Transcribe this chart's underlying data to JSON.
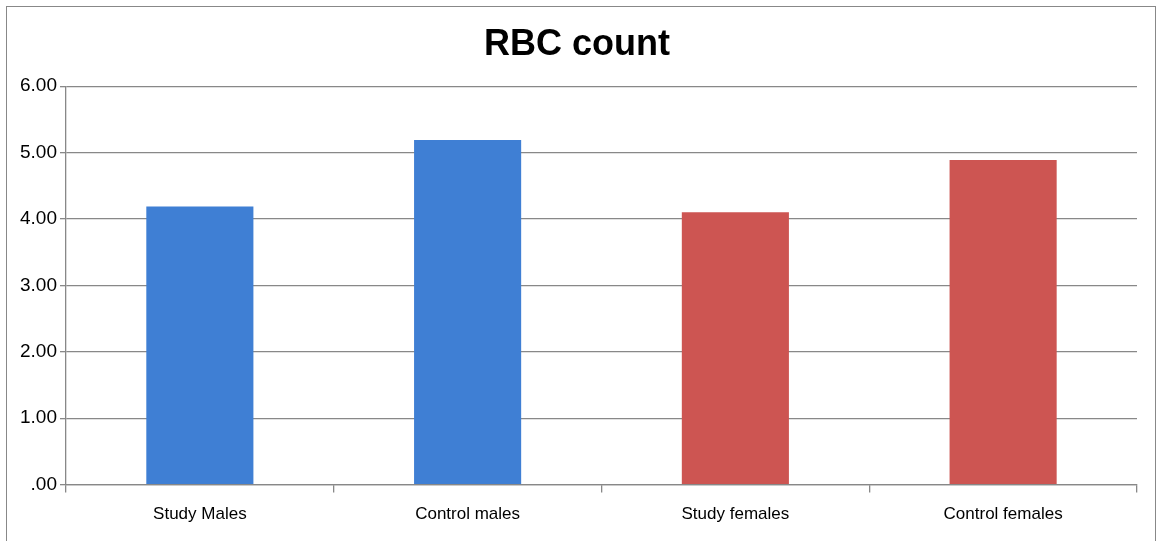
{
  "chart_data": {
    "type": "bar",
    "title": "RBC count",
    "categories": [
      "Study Males",
      "Control males",
      "Study females",
      "Control females"
    ],
    "values": [
      4.19,
      5.19,
      4.1,
      4.89
    ],
    "colors": [
      "#3f7fd4",
      "#3f7fd4",
      "#cd5552",
      "#cd5552"
    ],
    "ylim": [
      0,
      6
    ],
    "yticks": [
      {
        "value": 0,
        "label": ".00"
      },
      {
        "value": 1,
        "label": "1.00"
      },
      {
        "value": 2,
        "label": "2.00"
      },
      {
        "value": 3,
        "label": "3.00"
      },
      {
        "value": 4,
        "label": "4.00"
      },
      {
        "value": 5,
        "label": "5.00"
      },
      {
        "value": 6,
        "label": "6.00"
      }
    ],
    "grid": "y",
    "legend": false
  }
}
